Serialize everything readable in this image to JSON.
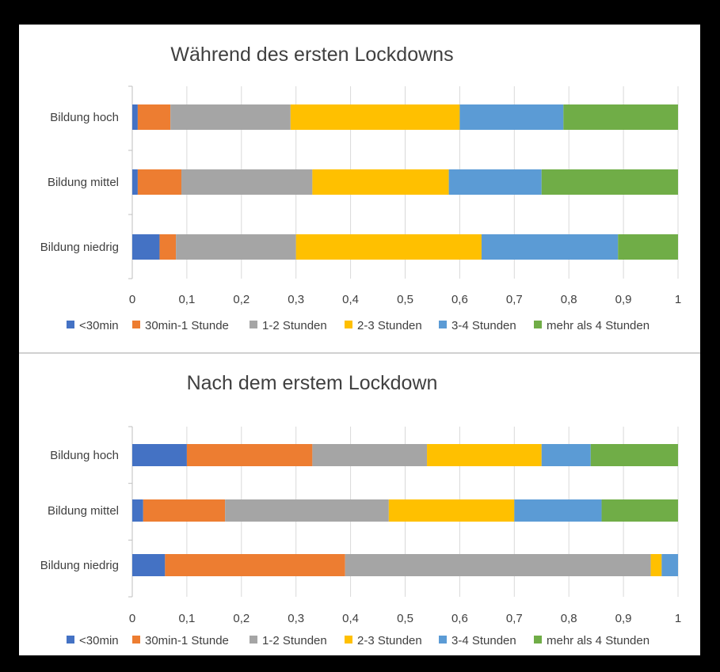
{
  "chart_data": [
    {
      "type": "bar",
      "orientation": "horizontal",
      "stacked": true,
      "title": "Während des ersten Lockdowns",
      "categories": [
        "Bildung hoch",
        "Bildung mittel",
        "Bildung niedrig"
      ],
      "xlim": [
        0,
        1
      ],
      "xticks": [
        "0",
        "0,1",
        "0,2",
        "0,3",
        "0,4",
        "0,5",
        "0,6",
        "0,7",
        "0,8",
        "0,9",
        "1"
      ],
      "grid": true,
      "legend": "bottom",
      "series": [
        {
          "name": "<30min",
          "color": "#4472c4",
          "values": [
            0.01,
            0.01,
            0.05
          ]
        },
        {
          "name": "30min-1 Stunde",
          "color": "#ed7d31",
          "values": [
            0.06,
            0.08,
            0.03
          ]
        },
        {
          "name": "1-2 Stunden",
          "color": "#a5a5a5",
          "values": [
            0.22,
            0.24,
            0.22
          ]
        },
        {
          "name": "2-3 Stunden",
          "color": "#ffc000",
          "values": [
            0.31,
            0.25,
            0.34
          ]
        },
        {
          "name": "3-4 Stunden",
          "color": "#5b9bd5",
          "values": [
            0.19,
            0.17,
            0.25
          ]
        },
        {
          "name": "mehr als 4 Stunden",
          "color": "#70ad47",
          "values": [
            0.21,
            0.25,
            0.11
          ]
        }
      ]
    },
    {
      "type": "bar",
      "orientation": "horizontal",
      "stacked": true,
      "title": "Nach dem erstem Lockdown",
      "categories": [
        "Bildung hoch",
        "Bildung mittel",
        "Bildung niedrig"
      ],
      "xlim": [
        0,
        1
      ],
      "xticks": [
        "0",
        "0,1",
        "0,2",
        "0,3",
        "0,4",
        "0,5",
        "0,6",
        "0,7",
        "0,8",
        "0,9",
        "1"
      ],
      "grid": true,
      "legend": "bottom",
      "series": [
        {
          "name": "<30min",
          "color": "#4472c4",
          "values": [
            0.1,
            0.02,
            0.06
          ]
        },
        {
          "name": "30min-1 Stunde",
          "color": "#ed7d31",
          "values": [
            0.23,
            0.15,
            0.33
          ]
        },
        {
          "name": "1-2 Stunden",
          "color": "#a5a5a5",
          "values": [
            0.21,
            0.3,
            0.56
          ]
        },
        {
          "name": "2-3 Stunden",
          "color": "#ffc000",
          "values": [
            0.21,
            0.23,
            0.02
          ]
        },
        {
          "name": "3-4 Stunden",
          "color": "#5b9bd5",
          "values": [
            0.09,
            0.16,
            0.03
          ]
        },
        {
          "name": "mehr als 4 Stunden",
          "color": "#70ad47",
          "values": [
            0.16,
            0.14,
            0.0
          ]
        }
      ]
    }
  ]
}
